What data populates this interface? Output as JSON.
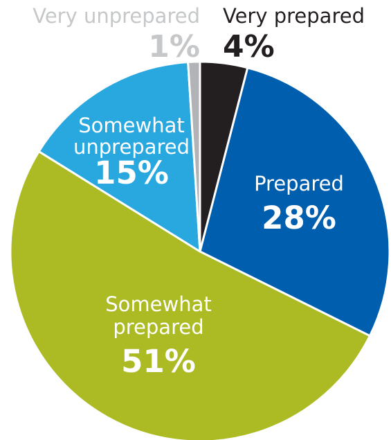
{
  "chart_data": {
    "type": "pie",
    "title": "",
    "start_angle_deg": 0,
    "direction": "clockwise",
    "slices": [
      {
        "name": "Very prepared",
        "value": 4,
        "label": "4%",
        "color": "#231f20",
        "text_color": "#231f20"
      },
      {
        "name": "Prepared",
        "value": 28,
        "label": "28%",
        "color": "#005eae",
        "text_color": "#ffffff"
      },
      {
        "name": "Somewhat prepared",
        "value": 51,
        "label": "51%",
        "color": "#acbb23",
        "text_color": "#ffffff"
      },
      {
        "name": "Somewhat unprepared",
        "value": 15,
        "label": "15%",
        "color": "#29a8e0",
        "text_color": "#ffffff"
      },
      {
        "name": "Very unprepared",
        "value": 1,
        "label": "1%",
        "color": "#b1b3b6",
        "text_color": "#c5c7c9"
      }
    ]
  }
}
